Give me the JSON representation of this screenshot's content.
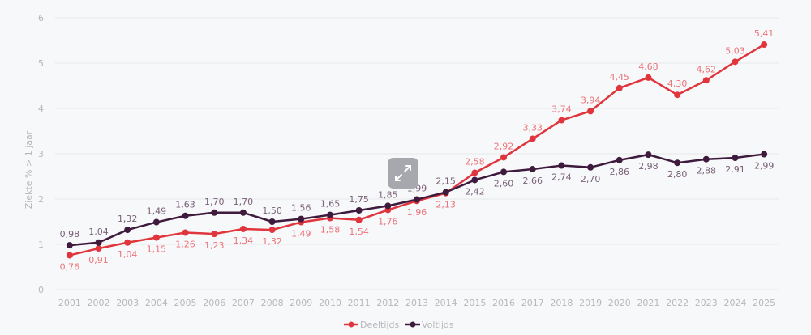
{
  "chart_data": {
    "type": "line",
    "title": "",
    "xlabel": "",
    "ylabel": "Ziekte % > 1 jaar",
    "ylim": [
      0,
      6
    ],
    "yticks": [
      "0",
      "1",
      "2",
      "3",
      "4",
      "5",
      "6"
    ],
    "grid": true,
    "legend_position": "bottom-center",
    "categories": [
      "2001",
      "2002",
      "2003",
      "2004",
      "2005",
      "2006",
      "2007",
      "2008",
      "2009",
      "2010",
      "2011",
      "2012",
      "2013",
      "2014",
      "2015",
      "2016",
      "2017",
      "2018",
      "2019",
      "2020",
      "2021",
      "2022",
      "2023",
      "2024",
      "2025"
    ],
    "series": [
      {
        "name": "Deeltijds",
        "color": "#e0353d",
        "label_color": "#ec7378",
        "values": [
          0.76,
          0.91,
          1.04,
          1.15,
          1.26,
          1.23,
          1.34,
          1.32,
          1.49,
          1.58,
          1.54,
          1.76,
          1.96,
          2.13,
          2.58,
          2.92,
          3.33,
          3.74,
          3.94,
          4.45,
          4.68,
          4.3,
          4.62,
          5.03,
          5.41
        ],
        "labels": [
          "0,76",
          "0,91",
          "1,04",
          "1,15",
          "1,26",
          "1,23",
          "1,34",
          "1,32",
          "1,49",
          "1,58",
          "1,54",
          "1,76",
          "1,96",
          "2,13",
          "2,58",
          "2,92",
          "3,33",
          "3,74",
          "3,94",
          "4,45",
          "4,68",
          "4,30",
          "4,62",
          "5,03",
          "5,41"
        ],
        "label_side": "above"
      },
      {
        "name": "Voltijds",
        "color": "#3e1a3d",
        "label_color": "#7a6178",
        "values": [
          0.98,
          1.04,
          1.32,
          1.49,
          1.63,
          1.7,
          1.7,
          1.5,
          1.56,
          1.65,
          1.75,
          1.85,
          1.99,
          2.15,
          2.42,
          2.6,
          2.66,
          2.74,
          2.7,
          2.86,
          2.98,
          2.8,
          2.88,
          2.91,
          2.99
        ],
        "labels": [
          "0,98",
          "1,04",
          "1,32",
          "1,49",
          "1,63",
          "1,70",
          "1,70",
          "1,50",
          "1,56",
          "1,65",
          "1,75",
          "1,85",
          "1,99",
          "2,15",
          "2,42",
          "2,60",
          "2,66",
          "2,74",
          "2,70",
          "2,86",
          "2,98",
          "2,80",
          "2,88",
          "2,91",
          "2,99"
        ],
        "label_side": "below"
      }
    ]
  },
  "controls": {
    "expand_icon": "expand-arrows-icon"
  }
}
